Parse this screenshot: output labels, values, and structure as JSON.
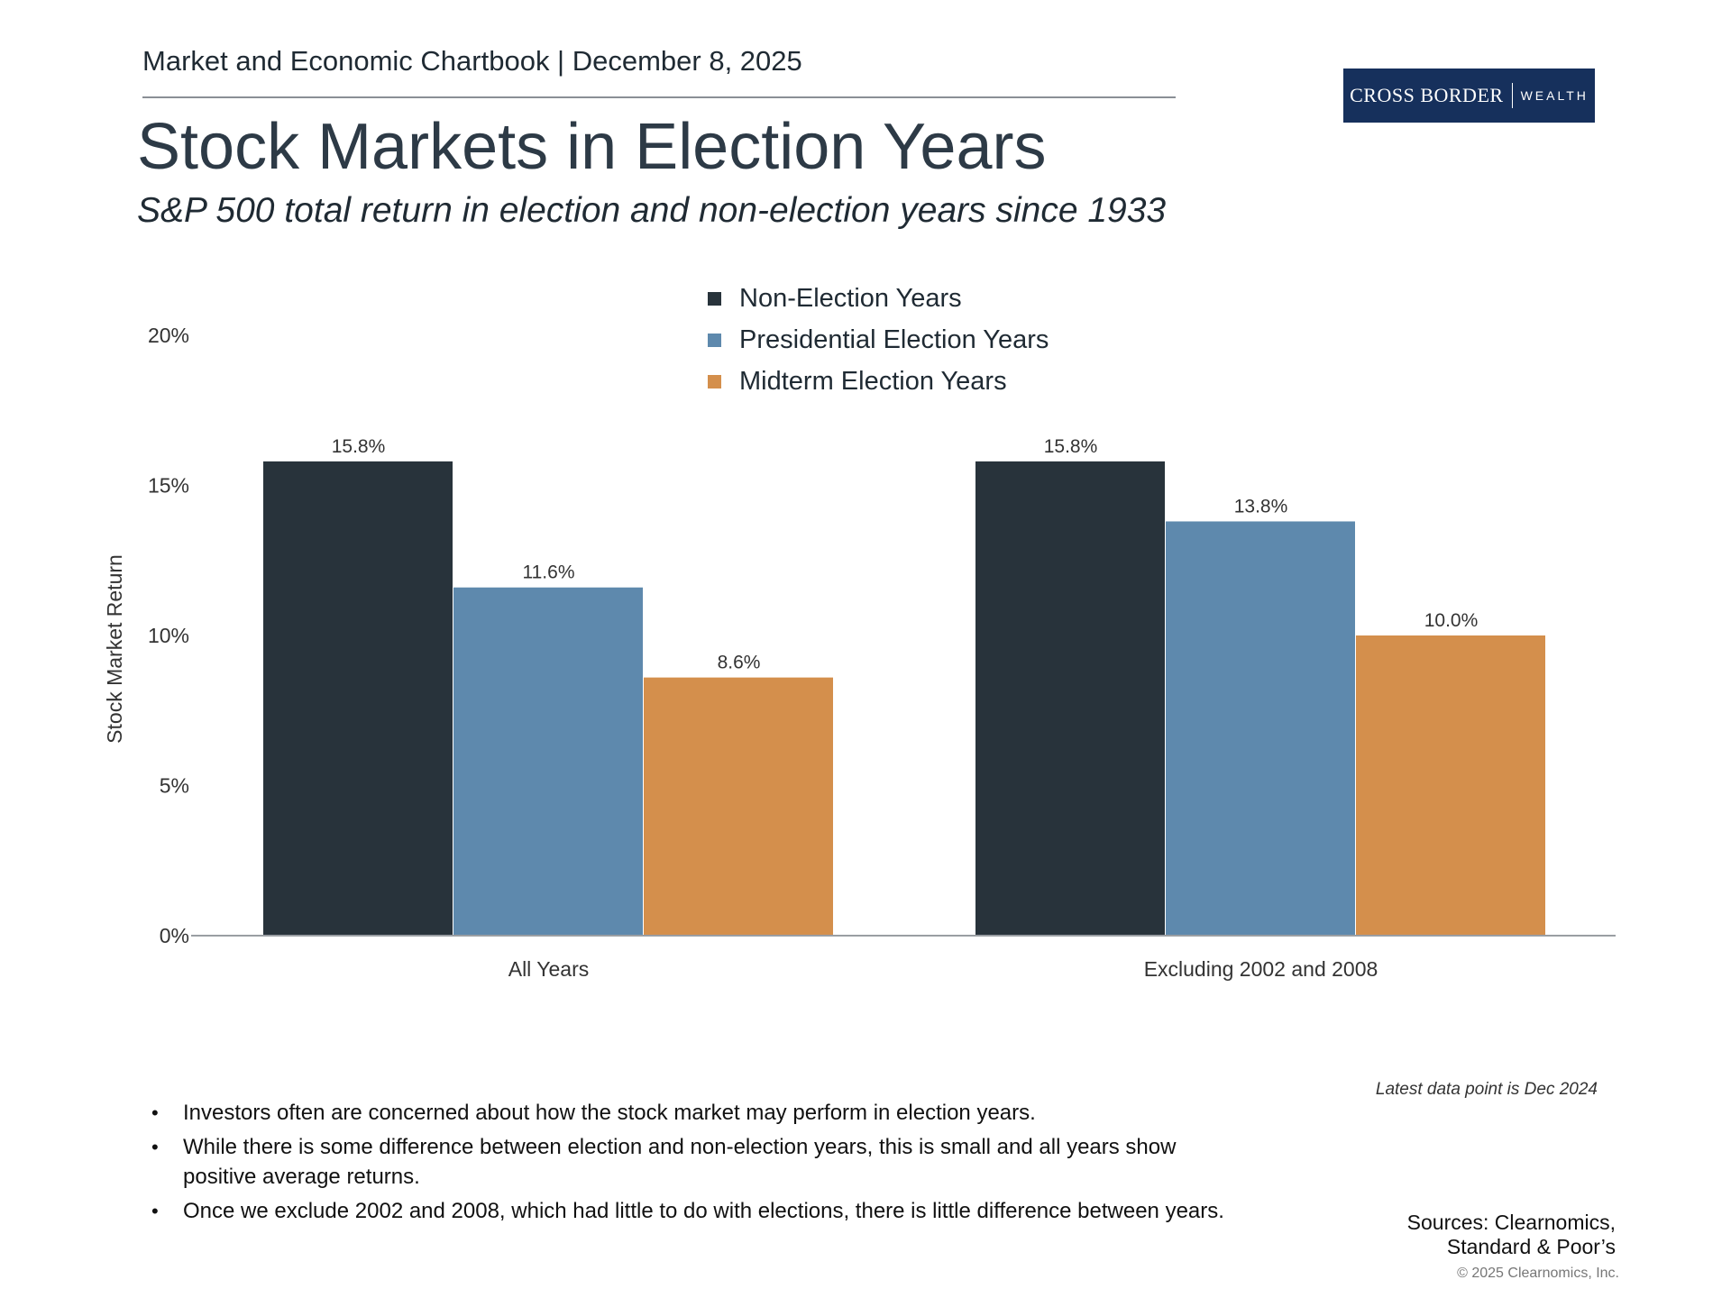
{
  "header": {
    "chartbook_label": "Market and Economic Chartbook | December 8, 2025",
    "title": "Stock Markets in Election Years",
    "subtitle": "S&P 500 total return in election and non-election years since 1933"
  },
  "logo": {
    "main": "CROSS BORDER",
    "sub": "WEALTH"
  },
  "colors": {
    "non_election": "#28333b",
    "presidential": "#5e89ad",
    "midterm": "#d48f4c",
    "axis": "#9a9ea3",
    "logo_bg": "#16305c"
  },
  "chart_data": {
    "type": "bar",
    "title": "",
    "xlabel": "",
    "ylabel": "Stock Market Return",
    "ylim": [
      0,
      20
    ],
    "yticks": [
      "0%",
      "5%",
      "10%",
      "15%",
      "20%"
    ],
    "ytick_values": [
      0,
      5,
      10,
      15,
      20
    ],
    "categories": [
      "All Years",
      "Excluding 2002 and 2008"
    ],
    "legend_position": "top-center",
    "series": [
      {
        "name": "Non-Election Years",
        "values": [
          15.8,
          15.8
        ],
        "labels": [
          "15.8%",
          "15.8%"
        ],
        "color": "#28333b"
      },
      {
        "name": "Presidential Election Years",
        "values": [
          11.6,
          13.8
        ],
        "labels": [
          "11.6%",
          "13.8%"
        ],
        "color": "#5e89ad"
      },
      {
        "name": "Midterm Election Years",
        "values": [
          8.6,
          10.0
        ],
        "labels": [
          "8.6%",
          "10.0%"
        ],
        "color": "#d48f4c"
      }
    ]
  },
  "footer": {
    "note": "Latest data point is Dec 2024",
    "bullets": [
      "Investors often are concerned about how the stock market may perform in election years.",
      "While there is some difference between election and non-election years, this is small and all years show positive average returns.",
      "Once we exclude 2002 and 2008, which had little to do with elections, there is little difference between years."
    ],
    "sources_line1": "Sources: Clearnomics,",
    "sources_line2": "Standard & Poor’s",
    "copyright": "© 2025 Clearnomics, Inc."
  }
}
